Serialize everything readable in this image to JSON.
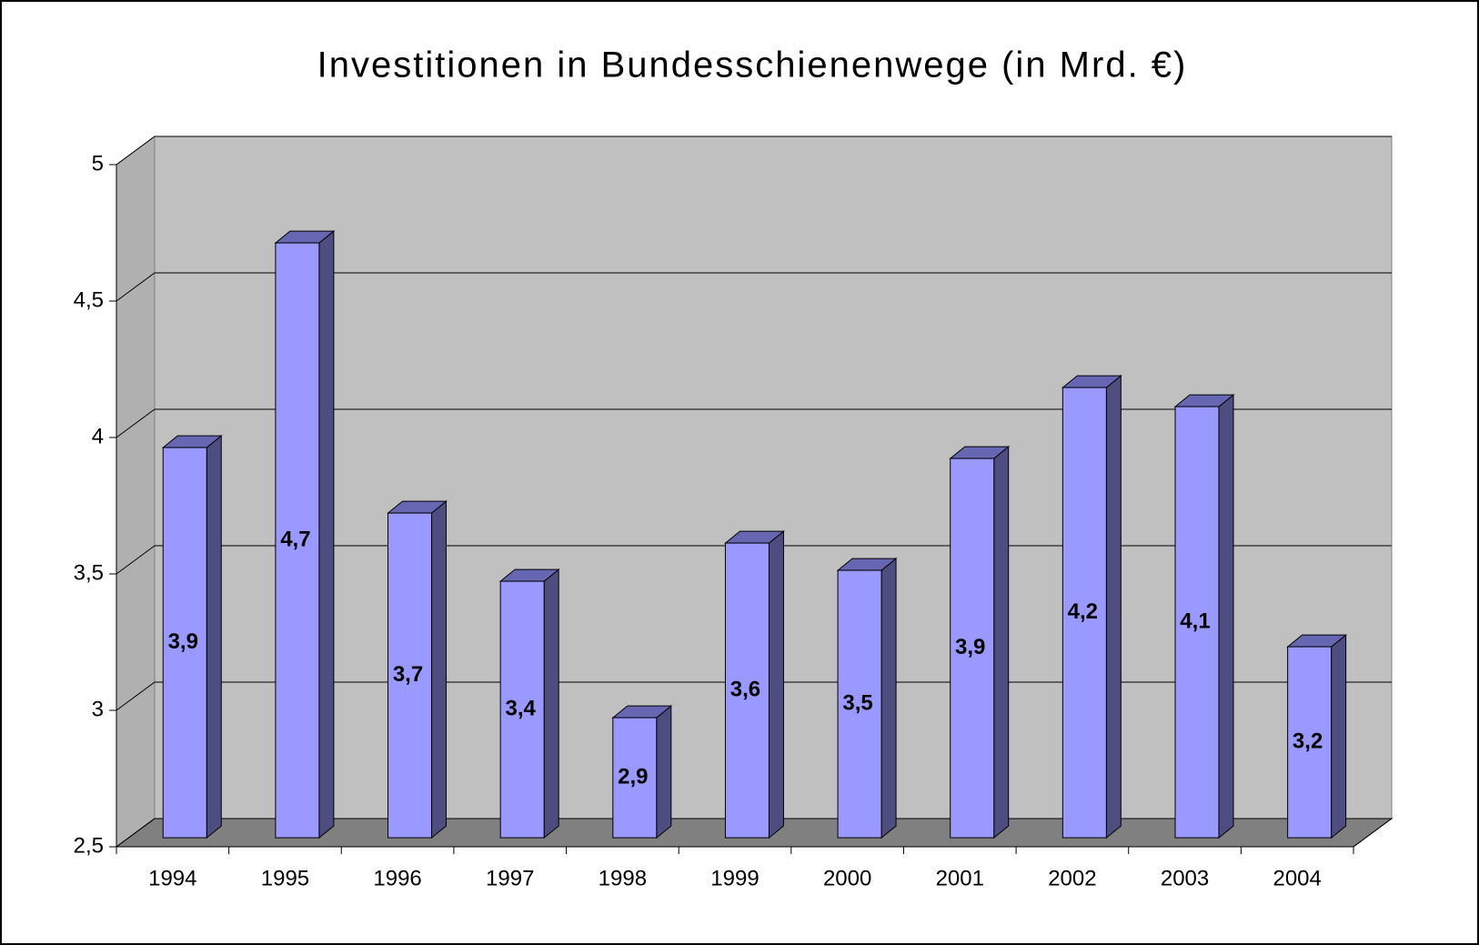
{
  "chart_data": {
    "type": "bar3d",
    "title": "Investitionen in Bundesschienenwege (in Mrd. €)",
    "categories": [
      "1994",
      "1995",
      "1996",
      "1997",
      "1998",
      "1999",
      "2000",
      "2001",
      "2002",
      "2003",
      "2004"
    ],
    "values": [
      3.93,
      4.68,
      3.69,
      3.44,
      2.94,
      3.58,
      3.48,
      3.89,
      4.15,
      4.08,
      3.2
    ],
    "value_labels": [
      "3,9",
      "4,7",
      "3,7",
      "3,4",
      "2,9",
      "3,6",
      "3,5",
      "3,9",
      "4,2",
      "4,1",
      "3,2"
    ],
    "color": "#9999ff",
    "ylim": [
      2.5,
      5
    ],
    "yticks": [
      {
        "value": 2.5,
        "label": "2,5"
      },
      3,
      {
        "value": 3.5,
        "label": "3,5"
      },
      4,
      {
        "value": 4.5,
        "label": "4,5"
      },
      5
    ],
    "grid": true
  }
}
